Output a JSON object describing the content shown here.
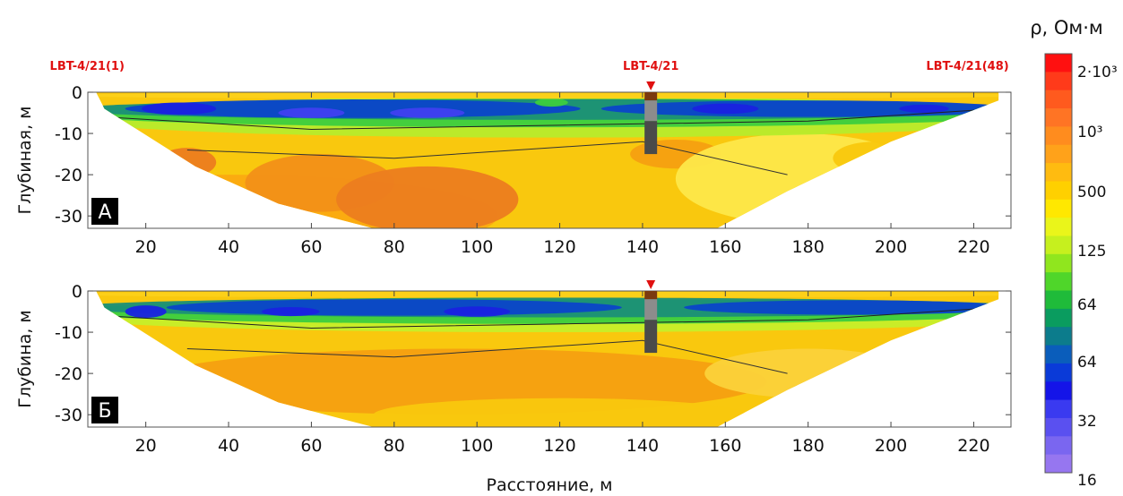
{
  "chart_data": {
    "type": "heatmap",
    "xlabel": "Расстояние, м",
    "x_ticks": [
      20,
      40,
      60,
      80,
      100,
      120,
      140,
      160,
      180,
      200,
      220
    ],
    "xlim": [
      6,
      229
    ],
    "y_ticks": [
      0,
      -10,
      -20,
      -30
    ],
    "ylim": [
      -33,
      0
    ],
    "markers": [
      {
        "label": "LBT-4/21(1)",
        "x": 8
      },
      {
        "label": "LBT-4/21",
        "x": 142
      },
      {
        "label": "LBT-4/21(48)",
        "x": 225
      }
    ],
    "borehole": {
      "x": 142,
      "depth_top": 0,
      "depth_bottom": -15
    },
    "colorbar": {
      "title": "ρ, Ом·м",
      "labels": [
        "2·10³",
        "10³",
        "500",
        "125",
        "64",
        "64",
        "32",
        "16"
      ],
      "colors": [
        "#ff1010",
        "#ff3a1a",
        "#ff5a1e",
        "#ff7424",
        "#ff8c1e",
        "#ffa21a",
        "#ffbb10",
        "#ffd000",
        "#ffe800",
        "#eaf51a",
        "#c6f01e",
        "#90e61e",
        "#4fd62a",
        "#1fbb3a",
        "#0a9c5f",
        "#0c7c8c",
        "#0a5dbb",
        "#0a3ad8",
        "#1414e8",
        "#3a3af0",
        "#5a50f0",
        "#7a66f0",
        "#9676f0"
      ]
    },
    "panels": [
      {
        "label": "А",
        "ylabel": "Глубиная, м",
        "bg_color": "#f9c80e",
        "blobs": [
          {
            "x": 40,
            "y": -30,
            "w": 130,
            "h": 20,
            "color": "#fbaa11"
          },
          {
            "x": 62,
            "y": -22,
            "w": 36,
            "h": 14,
            "color": "#f29018"
          },
          {
            "x": 88,
            "y": -26,
            "w": 44,
            "h": 16,
            "color": "#ec7d1f"
          },
          {
            "x": 30,
            "y": -17,
            "w": 14,
            "h": 7,
            "color": "#ec7d1f"
          },
          {
            "x": 148,
            "y": -15,
            "w": 22,
            "h": 7,
            "color": "#f6a011"
          },
          {
            "x": 178,
            "y": -21,
            "w": 60,
            "h": 22,
            "color": "#fde84a"
          },
          {
            "x": 196,
            "y": -16,
            "w": 20,
            "h": 8,
            "color": "#f9c80e"
          },
          {
            "x": 118,
            "y": -6,
            "w": 240,
            "h": 10,
            "color": "#b7ec2c"
          },
          {
            "x": 118,
            "y": -5,
            "w": 240,
            "h": 7,
            "color": "#3dcd3e"
          },
          {
            "x": 118,
            "y": -4.2,
            "w": 236,
            "h": 5,
            "color": "#1b8f77"
          },
          {
            "x": 70,
            "y": -4,
            "w": 110,
            "h": 4.5,
            "color": "#0b45c9"
          },
          {
            "x": 180,
            "y": -4,
            "w": 100,
            "h": 4,
            "color": "#0b45c9"
          },
          {
            "x": 28,
            "y": -4,
            "w": 18,
            "h": 3,
            "color": "#1a22e0"
          },
          {
            "x": 60,
            "y": -5,
            "w": 16,
            "h": 2.5,
            "color": "#4040f0"
          },
          {
            "x": 88,
            "y": -5,
            "w": 18,
            "h": 2.5,
            "color": "#4040f0"
          },
          {
            "x": 118,
            "y": -2.5,
            "w": 8,
            "h": 2,
            "color": "#3dcd3e"
          },
          {
            "x": 160,
            "y": -4,
            "w": 16,
            "h": 2.5,
            "color": "#1a22e0"
          },
          {
            "x": 208,
            "y": -4,
            "w": 12,
            "h": 2,
            "color": "#1a22e0"
          },
          {
            "x": 118,
            "y": -0.8,
            "w": 240,
            "h": 1.6,
            "color": "#fcd11a"
          }
        ]
      },
      {
        "label": "Б",
        "ylabel": "Глубина, м",
        "bg_color": "#f9c80e",
        "blobs": [
          {
            "x": 95,
            "y": -22,
            "w": 150,
            "h": 16,
            "color": "#f6a011"
          },
          {
            "x": 120,
            "y": -30,
            "w": 90,
            "h": 8,
            "color": "#f9c80e"
          },
          {
            "x": 180,
            "y": -20,
            "w": 50,
            "h": 12,
            "color": "#fbd23a"
          },
          {
            "x": 118,
            "y": -6,
            "w": 240,
            "h": 8,
            "color": "#c6ef2a"
          },
          {
            "x": 118,
            "y": -5,
            "w": 240,
            "h": 6,
            "color": "#3dcd3e"
          },
          {
            "x": 118,
            "y": -4,
            "w": 236,
            "h": 4.8,
            "color": "#1b8f77"
          },
          {
            "x": 80,
            "y": -4,
            "w": 110,
            "h": 4,
            "color": "#0b45c9"
          },
          {
            "x": 190,
            "y": -4,
            "w": 80,
            "h": 3.5,
            "color": "#0b45c9"
          },
          {
            "x": 20,
            "y": -5,
            "w": 10,
            "h": 3,
            "color": "#1a22e0"
          },
          {
            "x": 55,
            "y": -5,
            "w": 14,
            "h": 2.2,
            "color": "#1a22e0"
          },
          {
            "x": 100,
            "y": -5,
            "w": 16,
            "h": 2.5,
            "color": "#1a22e0"
          },
          {
            "x": 118,
            "y": -0.8,
            "w": 240,
            "h": 1.6,
            "color": "#fcd11a"
          }
        ]
      }
    ]
  }
}
